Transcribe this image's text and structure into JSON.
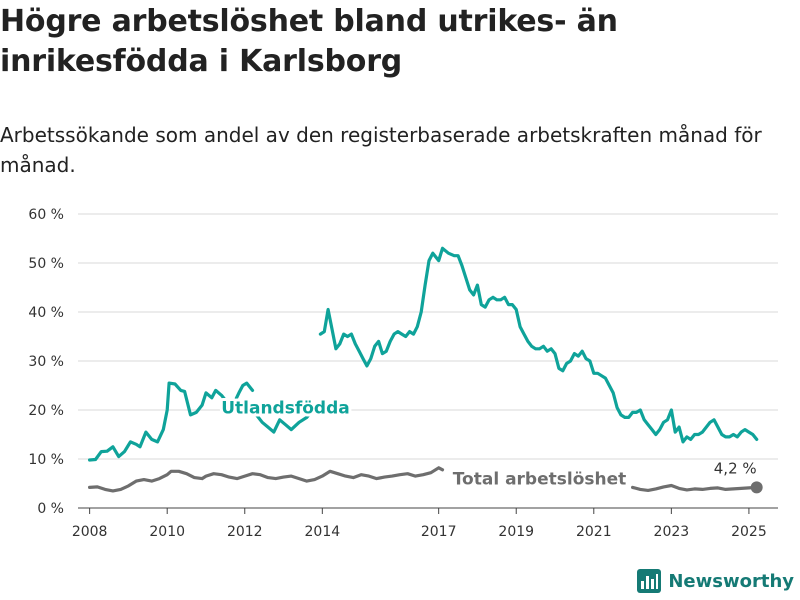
{
  "header": {
    "title": "Högre arbetslöshet bland utrikes- än inrikesfödda i Karlsborg",
    "subtitle": "Arbetssökande som andel av den registerbaserade arbetskraften månad för månad."
  },
  "brand": {
    "name": "Newsworthy",
    "icon": "newsworthy-bar-chart-icon",
    "color": "#157a75"
  },
  "chart_data": {
    "type": "line",
    "title": "Högre arbetslöshet bland utrikes- än inrikesfödda i Karlsborg",
    "subtitle": "Arbetssökande som andel av den registerbaserade arbetskraften månad för månad.",
    "xlabel": "",
    "ylabel": "",
    "xlim": [
      2007.7,
      2025.75
    ],
    "ylim": [
      0,
      60
    ],
    "x_ticks": [
      {
        "value": 2008,
        "label": "2008"
      },
      {
        "value": 2010,
        "label": "2010"
      },
      {
        "value": 2012,
        "label": "2012"
      },
      {
        "value": 2014,
        "label": "2014"
      },
      {
        "value": 2017,
        "label": "2017"
      },
      {
        "value": 2019,
        "label": "2019"
      },
      {
        "value": 2021,
        "label": "2021"
      },
      {
        "value": 2023,
        "label": "2023"
      },
      {
        "value": 2025,
        "label": "2025"
      }
    ],
    "y_ticks": [
      {
        "value": 0,
        "label": "0 %"
      },
      {
        "value": 10,
        "label": "10 %"
      },
      {
        "value": 20,
        "label": "20 %"
      },
      {
        "value": 30,
        "label": "30 %"
      },
      {
        "value": 40,
        "label": "40 %"
      },
      {
        "value": 50,
        "label": "50 %"
      },
      {
        "value": 60,
        "label": "60 %"
      }
    ],
    "grid": true,
    "legend": "none",
    "series": [
      {
        "name": "Utlandsfödda",
        "color": "#0fa39a",
        "segments": [
          [
            [
              2008.0,
              9.8
            ],
            [
              2008.15,
              9.9
            ],
            [
              2008.3,
              11.5
            ],
            [
              2008.45,
              11.6
            ],
            [
              2008.6,
              12.5
            ],
            [
              2008.75,
              10.5
            ],
            [
              2008.9,
              11.5
            ],
            [
              2009.05,
              13.5
            ],
            [
              2009.2,
              13.0
            ],
            [
              2009.3,
              12.5
            ],
            [
              2009.45,
              15.5
            ],
            [
              2009.6,
              14.0
            ],
            [
              2009.75,
              13.5
            ],
            [
              2009.9,
              16.0
            ],
            [
              2010.0,
              20.0
            ],
            [
              2010.05,
              25.5
            ],
            [
              2010.2,
              25.3
            ],
            [
              2010.35,
              24.0
            ],
            [
              2010.45,
              23.8
            ],
            [
              2010.6,
              19.0
            ],
            [
              2010.75,
              19.5
            ],
            [
              2010.9,
              21.0
            ],
            [
              2011.0,
              23.5
            ],
            [
              2011.15,
              22.5
            ],
            [
              2011.25,
              24.0
            ],
            [
              2011.4,
              23.0
            ],
            [
              2011.55,
              21.5
            ],
            [
              2011.7,
              21.0
            ],
            [
              2011.85,
              23.5
            ],
            [
              2011.95,
              25.0
            ],
            [
              2012.05,
              25.5
            ],
            [
              2012.2,
              24.0
            ]
          ],
          [
            [
              2012.3,
              19.0
            ],
            [
              2012.45,
              17.5
            ],
            [
              2012.6,
              16.5
            ],
            [
              2012.75,
              15.5
            ],
            [
              2012.9,
              18.0
            ],
            [
              2013.05,
              17.0
            ],
            [
              2013.2,
              16.0
            ],
            [
              2013.4,
              17.5
            ],
            [
              2013.6,
              18.5
            ],
            [
              2013.85,
              21.0
            ]
          ],
          [
            [
              2013.95,
              35.5
            ],
            [
              2014.05,
              36.0
            ],
            [
              2014.15,
              40.5
            ],
            [
              2014.25,
              36.5
            ],
            [
              2014.35,
              32.5
            ],
            [
              2014.45,
              33.5
            ],
            [
              2014.55,
              35.5
            ],
            [
              2014.65,
              35.0
            ],
            [
              2014.75,
              35.5
            ],
            [
              2014.85,
              33.5
            ],
            [
              2014.95,
              32.0
            ],
            [
              2015.05,
              30.5
            ],
            [
              2015.15,
              29.0
            ],
            [
              2015.25,
              30.5
            ],
            [
              2015.35,
              33.0
            ],
            [
              2015.45,
              34.0
            ],
            [
              2015.55,
              31.5
            ],
            [
              2015.65,
              32.0
            ],
            [
              2015.75,
              34.0
            ],
            [
              2015.85,
              35.5
            ],
            [
              2015.95,
              36.0
            ],
            [
              2016.05,
              35.5
            ],
            [
              2016.15,
              35.0
            ],
            [
              2016.25,
              36.0
            ],
            [
              2016.35,
              35.5
            ],
            [
              2016.45,
              37.0
            ],
            [
              2016.55,
              40.0
            ],
            [
              2016.65,
              45.5
            ],
            [
              2016.75,
              50.5
            ],
            [
              2016.85,
              52.0
            ],
            [
              2016.95,
              51.0
            ],
            [
              2017.0,
              50.5
            ],
            [
              2017.1,
              53.0
            ],
            [
              2017.25,
              52.0
            ],
            [
              2017.4,
              51.5
            ],
            [
              2017.5,
              51.5
            ],
            [
              2017.6,
              49.5
            ],
            [
              2017.7,
              47.0
            ],
            [
              2017.8,
              44.5
            ],
            [
              2017.9,
              43.5
            ],
            [
              2018.0,
              45.5
            ],
            [
              2018.1,
              41.5
            ],
            [
              2018.2,
              41.0
            ],
            [
              2018.3,
              42.5
            ],
            [
              2018.4,
              43.0
            ],
            [
              2018.5,
              42.5
            ],
            [
              2018.6,
              42.5
            ],
            [
              2018.7,
              43.0
            ],
            [
              2018.8,
              41.5
            ],
            [
              2018.9,
              41.5
            ],
            [
              2019.0,
              40.5
            ],
            [
              2019.1,
              37.0
            ],
            [
              2019.2,
              35.5
            ],
            [
              2019.3,
              34.0
            ],
            [
              2019.4,
              33.0
            ],
            [
              2019.5,
              32.5
            ],
            [
              2019.6,
              32.5
            ],
            [
              2019.7,
              33.0
            ],
            [
              2019.8,
              32.0
            ],
            [
              2019.9,
              32.5
            ],
            [
              2020.0,
              31.5
            ],
            [
              2020.1,
              28.5
            ],
            [
              2020.2,
              28.0
            ],
            [
              2020.3,
              29.5
            ],
            [
              2020.4,
              30.0
            ],
            [
              2020.5,
              31.5
            ],
            [
              2020.6,
              31.0
            ],
            [
              2020.7,
              32.0
            ],
            [
              2020.8,
              30.5
            ],
            [
              2020.9,
              30.0
            ],
            [
              2021.0,
              27.5
            ],
            [
              2021.1,
              27.5
            ],
            [
              2021.2,
              27.0
            ],
            [
              2021.3,
              26.5
            ],
            [
              2021.4,
              25.0
            ],
            [
              2021.5,
              23.5
            ],
            [
              2021.6,
              20.5
            ],
            [
              2021.7,
              19.0
            ],
            [
              2021.8,
              18.5
            ],
            [
              2021.9,
              18.5
            ],
            [
              2022.0,
              19.5
            ],
            [
              2022.1,
              19.5
            ],
            [
              2022.2,
              20.0
            ],
            [
              2022.3,
              18.0
            ],
            [
              2022.4,
              17.0
            ],
            [
              2022.5,
              16.0
            ],
            [
              2022.6,
              15.0
            ],
            [
              2022.7,
              16.0
            ],
            [
              2022.8,
              17.5
            ],
            [
              2022.9,
              18.0
            ],
            [
              2023.0,
              20.0
            ],
            [
              2023.1,
              15.5
            ],
            [
              2023.2,
              16.5
            ],
            [
              2023.3,
              13.5
            ],
            [
              2023.4,
              14.5
            ],
            [
              2023.5,
              14.0
            ],
            [
              2023.6,
              15.0
            ],
            [
              2023.7,
              15.0
            ],
            [
              2023.8,
              15.5
            ],
            [
              2023.9,
              16.5
            ],
            [
              2024.0,
              17.5
            ],
            [
              2024.1,
              18.0
            ],
            [
              2024.2,
              16.5
            ],
            [
              2024.3,
              15.0
            ],
            [
              2024.4,
              14.5
            ],
            [
              2024.5,
              14.5
            ],
            [
              2024.6,
              15.0
            ],
            [
              2024.7,
              14.5
            ],
            [
              2024.8,
              15.5
            ],
            [
              2024.9,
              16.0
            ],
            [
              2025.0,
              15.5
            ],
            [
              2025.1,
              15.0
            ],
            [
              2025.2,
              14.0
            ]
          ]
        ]
      },
      {
        "name": "Total arbetslöshet",
        "color": "#6e6e6e",
        "segments": [
          [
            [
              2008.0,
              4.2
            ],
            [
              2008.2,
              4.3
            ],
            [
              2008.4,
              3.8
            ],
            [
              2008.6,
              3.5
            ],
            [
              2008.8,
              3.8
            ],
            [
              2009.0,
              4.5
            ],
            [
              2009.2,
              5.5
            ],
            [
              2009.4,
              5.8
            ],
            [
              2009.6,
              5.5
            ],
            [
              2009.8,
              6.0
            ],
            [
              2010.0,
              6.8
            ],
            [
              2010.1,
              7.5
            ],
            [
              2010.3,
              7.5
            ],
            [
              2010.5,
              7.0
            ],
            [
              2010.7,
              6.2
            ],
            [
              2010.9,
              6.0
            ],
            [
              2011.0,
              6.5
            ],
            [
              2011.2,
              7.0
            ],
            [
              2011.4,
              6.8
            ],
            [
              2011.6,
              6.3
            ],
            [
              2011.8,
              6.0
            ],
            [
              2012.0,
              6.5
            ],
            [
              2012.2,
              7.0
            ],
            [
              2012.4,
              6.8
            ],
            [
              2012.6,
              6.2
            ],
            [
              2012.8,
              6.0
            ],
            [
              2013.0,
              6.3
            ],
            [
              2013.2,
              6.5
            ],
            [
              2013.4,
              6.0
            ],
            [
              2013.6,
              5.5
            ],
            [
              2013.8,
              5.8
            ],
            [
              2014.0,
              6.5
            ],
            [
              2014.2,
              7.5
            ],
            [
              2014.4,
              7.0
            ],
            [
              2014.6,
              6.5
            ],
            [
              2014.8,
              6.2
            ],
            [
              2015.0,
              6.8
            ],
            [
              2015.2,
              6.5
            ],
            [
              2015.4,
              6.0
            ],
            [
              2015.6,
              6.3
            ],
            [
              2015.8,
              6.5
            ],
            [
              2016.0,
              6.8
            ],
            [
              2016.2,
              7.0
            ],
            [
              2016.4,
              6.5
            ],
            [
              2016.6,
              6.8
            ],
            [
              2016.8,
              7.2
            ],
            [
              2017.0,
              8.2
            ],
            [
              2017.1,
              7.8
            ]
          ],
          [
            [
              2022.0,
              4.2
            ],
            [
              2022.2,
              3.8
            ],
            [
              2022.4,
              3.6
            ],
            [
              2022.6,
              3.9
            ],
            [
              2022.8,
              4.3
            ],
            [
              2023.0,
              4.6
            ],
            [
              2023.2,
              4.0
            ],
            [
              2023.4,
              3.7
            ],
            [
              2023.6,
              3.9
            ],
            [
              2023.8,
              3.8
            ],
            [
              2024.0,
              4.0
            ],
            [
              2024.2,
              4.1
            ],
            [
              2024.4,
              3.8
            ],
            [
              2024.6,
              3.9
            ],
            [
              2024.8,
              4.0
            ],
            [
              2025.0,
              4.1
            ],
            [
              2025.2,
              4.2
            ]
          ]
        ]
      }
    ],
    "annotations": [
      {
        "text": "Utlandsfödda",
        "series": 0,
        "x": 2013.05,
        "y": 20.5,
        "anchor": "middle"
      },
      {
        "text": "Total arbetslöshet",
        "series": 1,
        "x": 2019.6,
        "y": 6.0,
        "anchor": "middle"
      },
      {
        "text": "4,2 %",
        "series": 1,
        "x": 2025.2,
        "y": 4.2,
        "anchor": "end"
      }
    ],
    "end_point": {
      "series": 1,
      "x": 2025.2,
      "y": 4.2
    }
  }
}
